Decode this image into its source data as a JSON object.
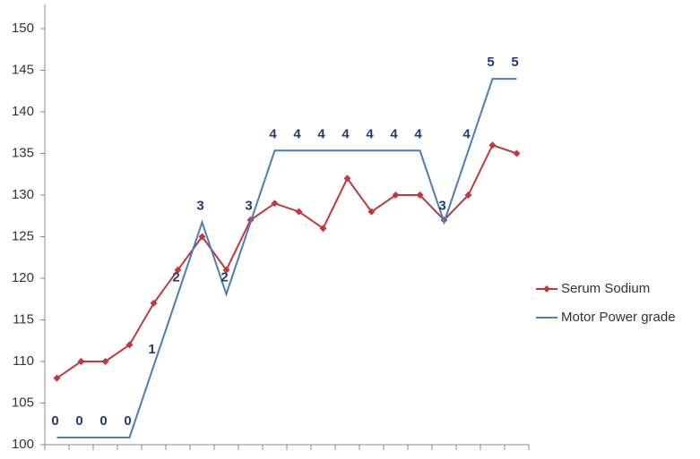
{
  "chart_data": {
    "type": "line",
    "categories": [
      null,
      null,
      null,
      null,
      null,
      null,
      null,
      null,
      null,
      null,
      null,
      null,
      null,
      null,
      null,
      null,
      null,
      null,
      null,
      null
    ],
    "series": [
      {
        "name": "Serum Sodium",
        "color": "#c0393b",
        "marker": "diamond",
        "values": [
          108,
          110,
          110,
          112,
          117,
          121,
          125,
          121,
          127,
          129,
          128,
          126,
          132,
          128,
          130,
          130,
          127,
          130,
          136,
          135
        ]
      },
      {
        "name": "Motor Power grade",
        "color": "#4a7ebb",
        "axis": "y2",
        "data_labels": true,
        "values": [
          0,
          0,
          0,
          0,
          1,
          2,
          3,
          2,
          3,
          4,
          4,
          4,
          4,
          4,
          4,
          4,
          3,
          4,
          5,
          5
        ]
      }
    ],
    "ylim": [
      100,
      150
    ],
    "yticks": [
      100,
      105,
      110,
      115,
      120,
      125,
      130,
      135,
      140,
      145,
      150
    ],
    "y2lim": [
      -0.1,
      5.7
    ],
    "grid": false,
    "legend": "right"
  }
}
